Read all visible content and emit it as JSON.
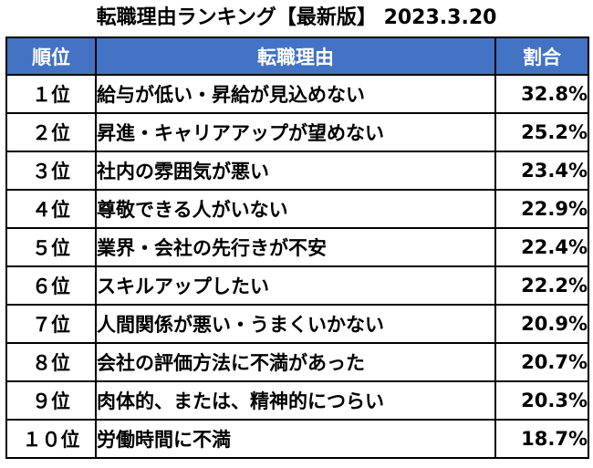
{
  "title": "転職理由ランキング【最新版】 2023.3.20",
  "table": {
    "headers": [
      "順位",
      "転職理由",
      "割合"
    ],
    "rows": [
      {
        "rank": "１位",
        "reason": "給与が低い・昇給が見込めない",
        "pct": "32.8%"
      },
      {
        "rank": "２位",
        "reason": "昇進・キャリアアップが望めない",
        "pct": "25.2%"
      },
      {
        "rank": "３位",
        "reason": "社内の雰囲気が悪い",
        "pct": "23.4%"
      },
      {
        "rank": "４位",
        "reason": "尊敬できる人がいない",
        "pct": "22.9%"
      },
      {
        "rank": "５位",
        "reason": "業界・会社の先行きが不安",
        "pct": "22.4%"
      },
      {
        "rank": "６位",
        "reason": "スキルアップしたい",
        "pct": "22.2%"
      },
      {
        "rank": "７位",
        "reason": "人間関係が悪い・うまくいかない",
        "pct": "20.9%"
      },
      {
        "rank": "８位",
        "reason": "会社の評価方法に不満があった",
        "pct": "20.7%"
      },
      {
        "rank": "９位",
        "reason": "肉体的、または、精神的につらい",
        "pct": "20.3%"
      },
      {
        "rank": "１０位",
        "reason": "労働時間に不満",
        "pct": "18.7%"
      }
    ]
  },
  "colors": {
    "header_bg": "#4472c4",
    "header_text": "#ffffff",
    "border": "#000000"
  }
}
